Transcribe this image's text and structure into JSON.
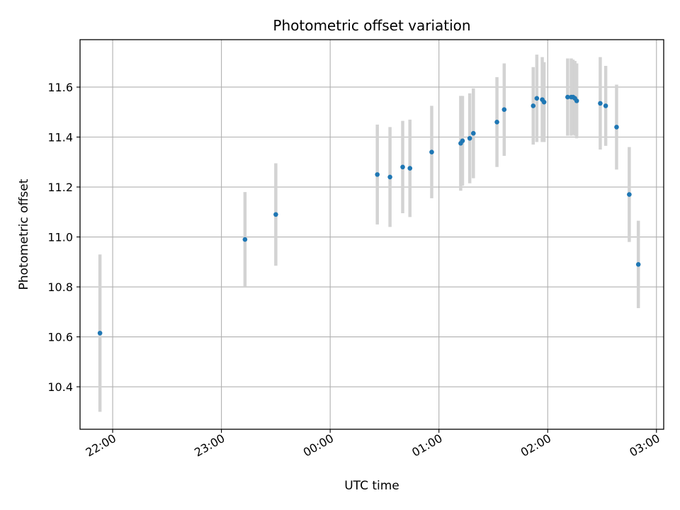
{
  "chart_data": {
    "type": "scatter",
    "title": "Photometric offset variation",
    "xlabel": "UTC time",
    "ylabel": "Photometric offset",
    "grid": true,
    "xlim": [
      "21:42",
      "03:04"
    ],
    "ylim": [
      10.23,
      11.79
    ],
    "x_ticks": [
      "22:00",
      "23:00",
      "00:00",
      "01:00",
      "02:00",
      "03:00"
    ],
    "y_ticks": [
      "10.4",
      "10.6",
      "10.8",
      "11.0",
      "11.2",
      "11.4",
      "11.6"
    ],
    "marker_color": "#1f77b4",
    "errorbar_color": "#d3d3d3",
    "points": [
      {
        "x": "21:53",
        "y": 10.615,
        "err": 0.315
      },
      {
        "x": "23:13",
        "y": 10.99,
        "err": 0.19
      },
      {
        "x": "23:30",
        "y": 11.09,
        "err": 0.205
      },
      {
        "x": "00:26",
        "y": 11.25,
        "err": 0.2
      },
      {
        "x": "00:33",
        "y": 11.24,
        "err": 0.2
      },
      {
        "x": "00:40",
        "y": 11.28,
        "err": 0.185
      },
      {
        "x": "00:44",
        "y": 11.275,
        "err": 0.195
      },
      {
        "x": "00:56",
        "y": 11.34,
        "err": 0.185
      },
      {
        "x": "01:12",
        "y": 11.375,
        "err": 0.19
      },
      {
        "x": "01:13",
        "y": 11.385,
        "err": 0.18
      },
      {
        "x": "01:17",
        "y": 11.395,
        "err": 0.18
      },
      {
        "x": "01:19",
        "y": 11.415,
        "err": 0.18
      },
      {
        "x": "01:32",
        "y": 11.46,
        "err": 0.18
      },
      {
        "x": "01:36",
        "y": 11.51,
        "err": 0.185
      },
      {
        "x": "01:52",
        "y": 11.525,
        "err": 0.155
      },
      {
        "x": "01:54",
        "y": 11.555,
        "err": 0.175
      },
      {
        "x": "01:57",
        "y": 11.55,
        "err": 0.17
      },
      {
        "x": "01:58",
        "y": 11.54,
        "err": 0.16
      },
      {
        "x": "02:11",
        "y": 11.56,
        "err": 0.155
      },
      {
        "x": "02:13",
        "y": 11.56,
        "err": 0.155
      },
      {
        "x": "02:14",
        "y": 11.56,
        "err": 0.15
      },
      {
        "x": "02:15",
        "y": 11.555,
        "err": 0.15
      },
      {
        "x": "02:16",
        "y": 11.545,
        "err": 0.15
      },
      {
        "x": "02:29",
        "y": 11.535,
        "err": 0.185
      },
      {
        "x": "02:32",
        "y": 11.525,
        "err": 0.16
      },
      {
        "x": "02:38",
        "y": 11.44,
        "err": 0.17
      },
      {
        "x": "02:45",
        "y": 11.17,
        "err": 0.19
      },
      {
        "x": "02:50",
        "y": 10.89,
        "err": 0.175
      }
    ]
  }
}
